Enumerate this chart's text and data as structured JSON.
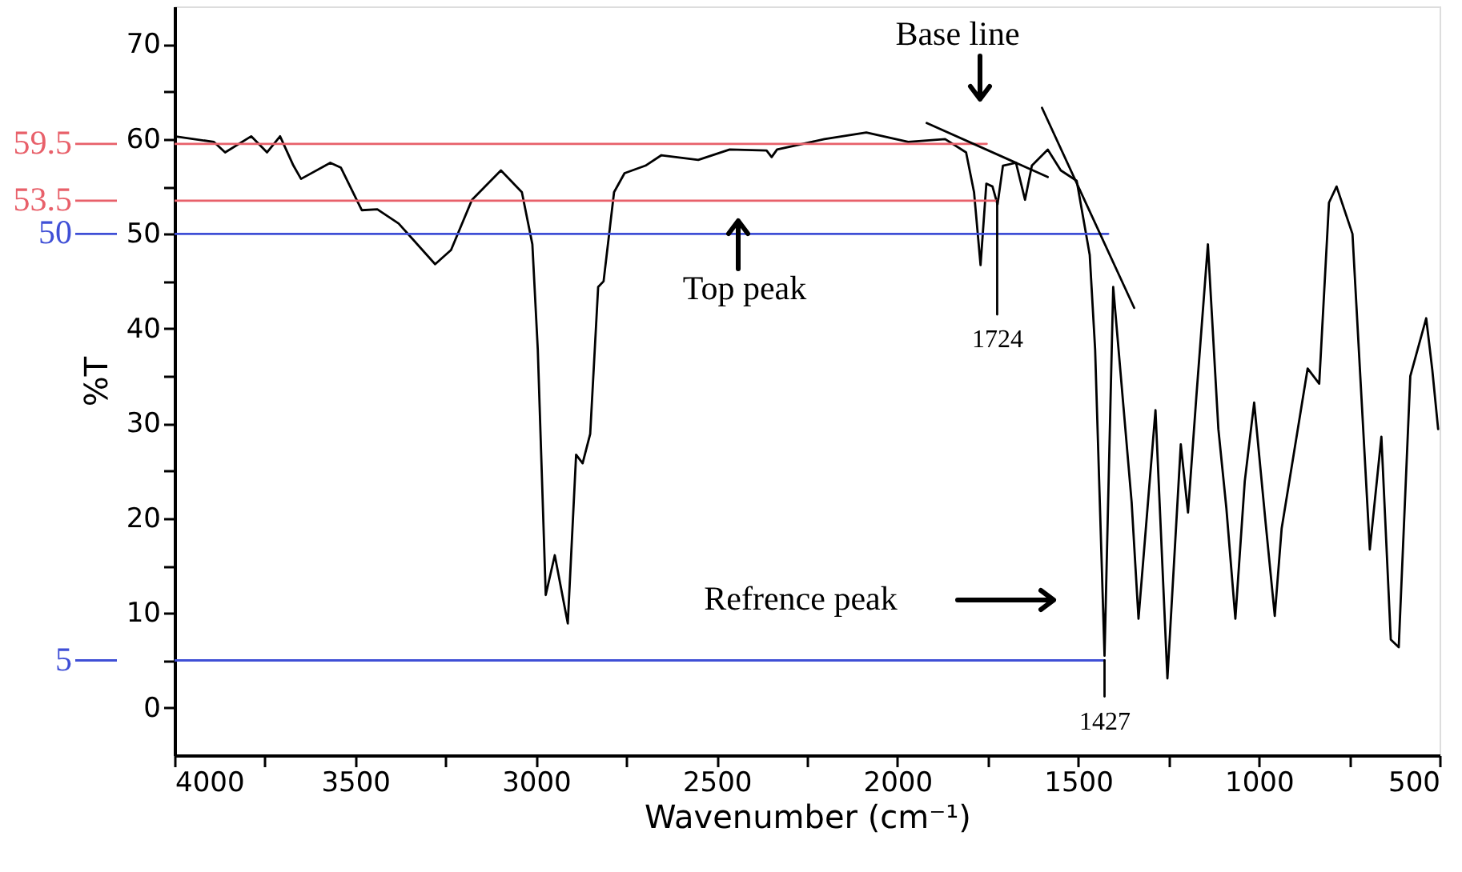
{
  "chart_data": {
    "type": "line",
    "xlabel": "Wavenumber (cm⁻¹)",
    "ylabel": "%T",
    "xlim": [
      4000,
      500
    ],
    "ylim": [
      -5,
      74
    ],
    "xticks": [
      4000,
      {
        "value": 3750,
        "label": null
      },
      3500,
      {
        "value": 3250,
        "label": null
      },
      3000,
      {
        "value": 2750,
        "label": null
      },
      2500,
      {
        "value": 2250,
        "label": null
      },
      2000,
      {
        "value": 1750,
        "label": null
      },
      1500,
      {
        "value": 1250,
        "label": null
      },
      1000,
      {
        "value": 750,
        "label": null
      },
      500
    ],
    "yticks": [
      0,
      {
        "value": 5,
        "label": null
      },
      10,
      {
        "value": 15,
        "label": null
      },
      20,
      {
        "value": 25,
        "label": null
      },
      30,
      {
        "value": 35,
        "label": null
      },
      40,
      {
        "value": 45,
        "label": null
      },
      50,
      {
        "value": 55,
        "label": null
      },
      60,
      {
        "value": 65,
        "label": null
      },
      70
    ],
    "grid": false,
    "legend": "left",
    "marker": "none",
    "line_style": "solid",
    "series": [
      {
        "color": "#000000",
        "x": [
          4000,
          3891,
          3860,
          3788,
          3744,
          3708,
          3671,
          3650,
          3569,
          3540,
          3482,
          3439,
          3380,
          3279,
          3235,
          3177,
          3097,
          3039,
          3010,
          2995,
          2973,
          2948,
          2912,
          2889,
          2871,
          2850,
          2828,
          2813,
          2784,
          2755,
          2697,
          2653,
          2551,
          2464,
          2362,
          2348,
          2333,
          2202,
          2086,
          1970,
          1868,
          1810,
          1788,
          1770,
          1754,
          1737,
          1723,
          1708,
          1672,
          1647,
          1628,
          1584,
          1548,
          1504,
          1468,
          1453,
          1427,
          1403,
          1352,
          1333,
          1286,
          1253,
          1216,
          1196,
          1173,
          1141,
          1112,
          1090,
          1065,
          1039,
          1013,
          981,
          956,
          937,
          865,
          833,
          806,
          785,
          741,
          693,
          661,
          635,
          613,
          581,
          537,
          520,
          504
        ],
        "values": [
          60.3,
          59.7,
          58.6,
          60.3,
          58.6,
          60.3,
          57.2,
          55.8,
          57.5,
          57.0,
          52.5,
          52.6,
          51.1,
          46.8,
          48.3,
          53.6,
          56.7,
          54.4,
          48.9,
          37.8,
          11.9,
          16.1,
          8.9,
          26.7,
          25.8,
          28.9,
          44.4,
          45.0,
          54.4,
          56.4,
          57.2,
          58.3,
          57.8,
          58.9,
          58.8,
          58.1,
          58.9,
          60.0,
          60.7,
          59.7,
          60.0,
          58.6,
          54.4,
          46.7,
          55.3,
          55.0,
          53.1,
          57.2,
          57.5,
          53.6,
          57.2,
          58.9,
          56.7,
          55.6,
          47.8,
          37.8,
          5.5,
          44.4,
          21.7,
          9.4,
          31.4,
          3.1,
          27.8,
          20.6,
          32.8,
          48.9,
          29.4,
          21.1,
          9.4,
          23.9,
          32.2,
          19.4,
          9.7,
          18.9,
          35.8,
          34.2,
          53.3,
          55.0,
          50.0,
          16.7,
          28.6,
          7.2,
          6.4,
          35.0,
          41.1,
          35.6,
          29.4
        ]
      },
      {
        "name": "59.5",
        "color": "#e8606a",
        "x": [
          4000,
          1753
        ],
        "values": [
          59.5,
          59.5
        ]
      },
      {
        "name": "53.5",
        "color": "#e8606a",
        "x": [
          4000,
          1724
        ],
        "values": [
          53.5,
          53.5
        ]
      },
      {
        "name": "50",
        "color": "#3f4fd6",
        "x": [
          4000,
          1417
        ],
        "values": [
          50,
          50
        ]
      },
      {
        "name": "5",
        "color": "#3f4fd6",
        "x": [
          4000,
          1427
        ],
        "values": [
          5,
          5
        ]
      },
      {
        "color": "#000000",
        "x": [
          1919,
          1584
        ],
        "values": [
          61.7,
          56.0
        ]
      },
      {
        "color": "#000000",
        "x": [
          1600,
          1345
        ],
        "values": [
          63.3,
          42.2
        ]
      },
      {
        "color": "#000000",
        "x": [
          1724,
          1724
        ],
        "values": [
          53.5,
          41.5
        ]
      },
      {
        "color": "#000000",
        "x": [
          1427,
          1427
        ],
        "values": [
          5,
          1.2
        ]
      }
    ],
    "annotations": [
      "Base line",
      "Top peak",
      "1724",
      "Refrence peak",
      "1427"
    ]
  }
}
